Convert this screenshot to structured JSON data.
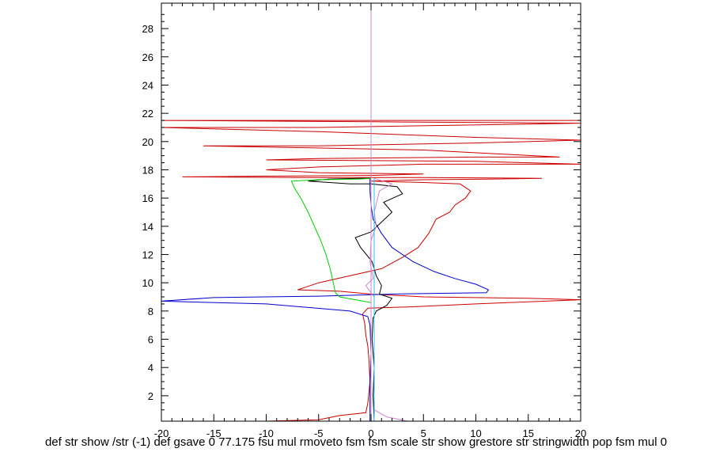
{
  "chart_data": {
    "type": "line",
    "title": "",
    "xlabel": "",
    "ylabel": "",
    "xlim": [
      -20,
      20
    ],
    "ylim": [
      0.2,
      29.8
    ],
    "x_ticks": [
      -20,
      -15,
      -10,
      -5,
      0,
      5,
      10,
      15,
      20
    ],
    "y_ticks": [
      2,
      4,
      6,
      8,
      10,
      12,
      14,
      16,
      18,
      20,
      22,
      24,
      26,
      28
    ],
    "grid": false,
    "series": [
      {
        "name": "red",
        "color": "#cc0000",
        "points": [
          [
            -10,
            0.2
          ],
          [
            -5,
            0.3
          ],
          [
            -3,
            0.6
          ],
          [
            -0.5,
            0.8
          ],
          [
            -0.3,
            1.5
          ],
          [
            -0.1,
            3
          ],
          [
            -0.2,
            4.5
          ],
          [
            -0.3,
            5.5
          ],
          [
            -0.5,
            6.3
          ],
          [
            -0.6,
            7.1
          ],
          [
            -0.8,
            7.8
          ],
          [
            -0.3,
            8.2
          ],
          [
            4,
            8.3
          ],
          [
            10,
            8.5
          ],
          [
            20,
            8.8
          ],
          [
            15,
            8.9
          ],
          [
            5,
            9.0
          ],
          [
            0,
            9.2
          ],
          [
            -3,
            9.4
          ],
          [
            -7,
            9.5
          ],
          [
            -5,
            10
          ],
          [
            -2,
            10.5
          ],
          [
            1,
            11
          ],
          [
            3,
            11.8
          ],
          [
            4.5,
            12.5
          ],
          [
            5.5,
            13.5
          ],
          [
            6.2,
            14.5
          ],
          [
            7.5,
            15
          ],
          [
            8,
            15.5
          ],
          [
            9,
            16
          ],
          [
            9.5,
            16.5
          ],
          [
            8.5,
            17
          ],
          [
            5,
            17.1
          ],
          [
            0,
            17.2
          ],
          [
            5,
            17.3
          ],
          [
            12,
            17.35
          ],
          [
            16.3,
            17.4
          ],
          [
            5,
            17.45
          ],
          [
            -7,
            17.45
          ],
          [
            -18,
            17.5
          ],
          [
            -10,
            17.55
          ],
          [
            0,
            17.6
          ],
          [
            5,
            17.7
          ],
          [
            -5,
            17.8
          ],
          [
            -10,
            18
          ],
          [
            -5,
            18.2
          ],
          [
            5,
            18.4
          ],
          [
            15,
            18.4
          ],
          [
            20,
            18.4
          ],
          [
            10,
            18.6
          ],
          [
            -10,
            18.7
          ],
          [
            -5,
            18.8
          ],
          [
            10,
            18.9
          ],
          [
            18,
            18.9
          ],
          [
            5,
            19.4
          ],
          [
            -16,
            19.7
          ],
          [
            -5,
            19.7
          ],
          [
            10,
            19.9
          ],
          [
            20,
            20.1
          ],
          [
            10,
            20.3
          ],
          [
            -5,
            20.7
          ],
          [
            -20,
            21.0
          ],
          [
            -5,
            21.0
          ],
          [
            20,
            21.3
          ],
          [
            0,
            21.4
          ],
          [
            -20,
            21.5
          ],
          [
            20,
            21.5
          ]
        ]
      },
      {
        "name": "blue",
        "color": "#0000cc",
        "points": [
          [
            -0.1,
            0.2
          ],
          [
            -0.1,
            3
          ],
          [
            0,
            5
          ],
          [
            -0.1,
            7
          ],
          [
            -0.3,
            7.6
          ],
          [
            -2,
            8
          ],
          [
            -10,
            8.5
          ],
          [
            -20,
            8.7
          ],
          [
            -15,
            8.95
          ],
          [
            -5,
            9.05
          ],
          [
            2,
            9.2
          ],
          [
            6,
            9.25
          ],
          [
            11,
            9.3
          ],
          [
            11.2,
            9.5
          ],
          [
            10,
            9.9
          ],
          [
            8,
            10.3
          ],
          [
            6,
            10.8
          ],
          [
            4,
            11.5
          ],
          [
            2,
            12.5
          ],
          [
            1,
            13.5
          ],
          [
            0.2,
            14.5
          ],
          [
            0,
            15.5
          ],
          [
            -0.1,
            16.5
          ],
          [
            -0.1,
            17.4
          ]
        ]
      },
      {
        "name": "black",
        "color": "#000000",
        "points": [
          [
            0.3,
            0.2
          ],
          [
            0.2,
            2
          ],
          [
            0.3,
            4
          ],
          [
            0.1,
            6
          ],
          [
            0.2,
            7.5
          ],
          [
            0.5,
            8.0
          ],
          [
            1.5,
            8.4
          ],
          [
            2,
            8.9
          ],
          [
            0.8,
            9.2
          ],
          [
            1,
            9.8
          ],
          [
            0.5,
            10.5
          ],
          [
            0.1,
            11.5
          ],
          [
            -1,
            12.5
          ],
          [
            -1.5,
            13.2
          ],
          [
            0,
            13.6
          ],
          [
            1,
            14.3
          ],
          [
            2,
            15.0
          ],
          [
            1.2,
            15.7
          ],
          [
            3,
            16.3
          ],
          [
            2.5,
            16.8
          ],
          [
            0,
            17.0
          ],
          [
            -2,
            17.0
          ],
          [
            -6,
            17.2
          ],
          [
            -4,
            17.35
          ],
          [
            -1,
            17.4
          ],
          [
            0,
            17.4
          ]
        ]
      },
      {
        "name": "green",
        "color": "#00cc00",
        "points": [
          [
            0,
            8.6
          ],
          [
            -3,
            9.0
          ],
          [
            -3.4,
            9.3
          ],
          [
            -3.6,
            10
          ],
          [
            -3.9,
            11
          ],
          [
            -4.3,
            12
          ],
          [
            -4.8,
            13
          ],
          [
            -5.4,
            14
          ],
          [
            -6,
            15
          ],
          [
            -6.7,
            16
          ],
          [
            -7.3,
            16.7
          ],
          [
            -7.6,
            17.2
          ],
          [
            -5,
            17.3
          ],
          [
            -1,
            17.35
          ],
          [
            0,
            17.4
          ]
        ]
      },
      {
        "name": "violet",
        "color": "#cc88cc",
        "points": [
          [
            0.5,
            0.2
          ],
          [
            3.5,
            0.2
          ],
          [
            1.5,
            0.5
          ],
          [
            0.3,
            1
          ],
          [
            0.3,
            4
          ],
          [
            0.3,
            7
          ],
          [
            0.3,
            9
          ],
          [
            -0.5,
            9.8
          ],
          [
            0.2,
            10.3
          ],
          [
            -0.1,
            11.5
          ],
          [
            0,
            13
          ],
          [
            0.5,
            14
          ],
          [
            0.3,
            15
          ],
          [
            0.8,
            16.5
          ],
          [
            2,
            17
          ],
          [
            0.3,
            17.4
          ]
        ]
      },
      {
        "name": "cyan",
        "color": "#33bbee",
        "points": [
          [
            0.3,
            0.2
          ],
          [
            0.3,
            5
          ],
          [
            0.3,
            9
          ],
          [
            0.3,
            12
          ],
          [
            0.3,
            15
          ],
          [
            0.3,
            17.4
          ]
        ]
      },
      {
        "name": "purple-vertical",
        "color": "#cc88cc",
        "points": [
          [
            0,
            0.2
          ],
          [
            0,
            29.8
          ]
        ]
      }
    ]
  },
  "footer": {
    "text": "def str show /str (-1) def gsave 0 77.175 fsu mul rmoveto fsm fsm scale str show grestore str stringwidth pop fsm mul 0"
  }
}
